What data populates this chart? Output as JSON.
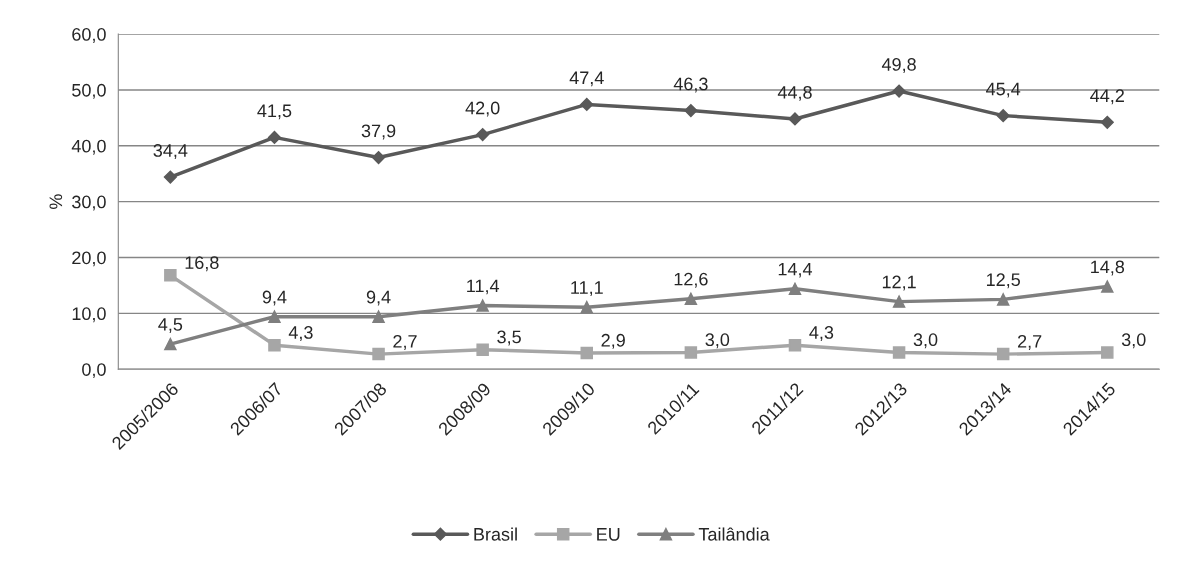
{
  "chart_data": {
    "type": "line",
    "ylabel": "%",
    "categories": [
      "2005/2006",
      "2006/07",
      "2007/08",
      "2008/09",
      "2009/10",
      "2010/11",
      "2011/12",
      "2012/13",
      "2013/14",
      "2014/15"
    ],
    "series": [
      {
        "name": "Brasil",
        "color": "#595959",
        "marker": "diamond",
        "values": [
          34.4,
          41.5,
          37.9,
          42.0,
          47.4,
          46.3,
          44.8,
          49.8,
          45.4,
          44.2
        ],
        "value_labels": [
          "34,4",
          "41,5",
          "37,9",
          "42,0",
          "47,4",
          "46,3",
          "44,8",
          "49,8",
          "45,4",
          "44,2"
        ]
      },
      {
        "name": "EU",
        "color": "#a6a6a6",
        "marker": "square",
        "values": [
          16.8,
          4.3,
          2.7,
          3.5,
          2.9,
          3.0,
          4.3,
          3.0,
          2.7,
          3.0
        ],
        "value_labels": [
          "16,8",
          "4,3",
          "2,7",
          "3,5",
          "2,9",
          "3,0",
          "4,3",
          "3,0",
          "2,7",
          "3,0"
        ]
      },
      {
        "name": "Tailândia",
        "color": "#7f7f7f",
        "marker": "triangle",
        "values": [
          4.5,
          9.4,
          9.4,
          11.4,
          11.1,
          12.6,
          14.4,
          12.1,
          12.5,
          14.8
        ],
        "value_labels": [
          "4,5",
          "9,4",
          "9,4",
          "11,4",
          "11,1",
          "12,6",
          "14,4",
          "12,1",
          "12,5",
          "14,8"
        ]
      }
    ],
    "ylim": [
      0,
      60
    ],
    "yticks": [
      {
        "value": 0,
        "label": "0,0"
      },
      {
        "value": 10,
        "label": "10,0"
      },
      {
        "value": 20,
        "label": "20,0"
      },
      {
        "value": 30,
        "label": "30,0"
      },
      {
        "value": 40,
        "label": "40,0"
      },
      {
        "value": 50,
        "label": "50,0"
      },
      {
        "value": 60,
        "label": "60,0"
      }
    ],
    "grid": "y",
    "legend": "bottom",
    "line_style": "solid"
  }
}
